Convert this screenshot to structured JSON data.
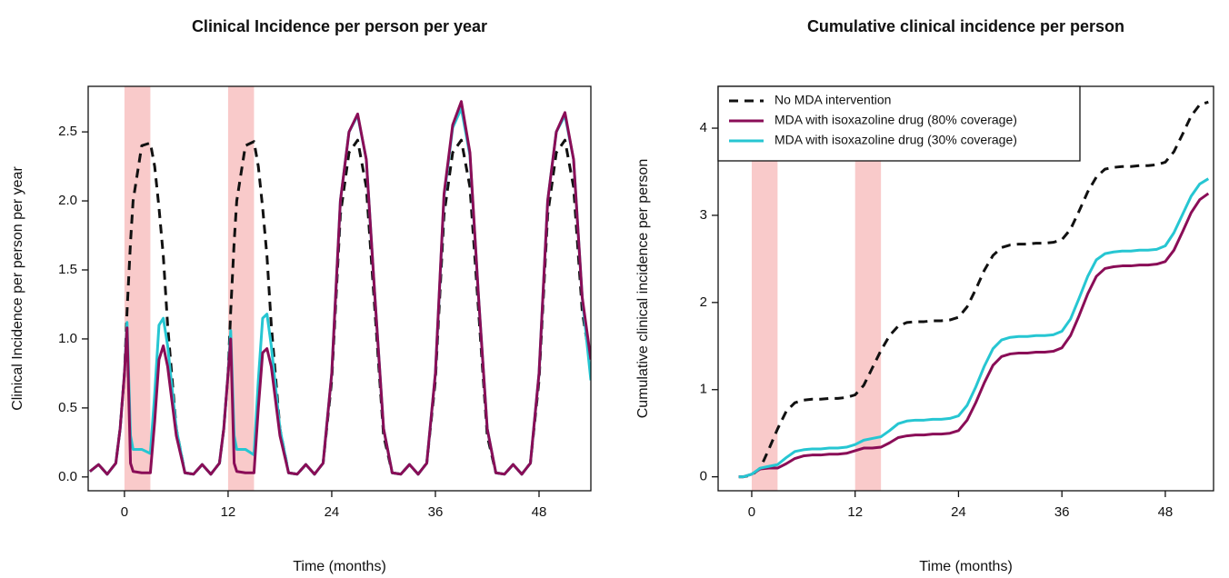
{
  "chart_data": [
    {
      "type": "line",
      "title": "Clinical Incidence per person per year",
      "x_label": "Time (months)",
      "y_label": "Clinical Incidence per person per year",
      "xlim": [
        -4.2,
        54
      ],
      "ylim": [
        -0.1,
        2.83
      ],
      "xticks": [
        0,
        12,
        24,
        36,
        48
      ],
      "yticks": [
        {
          "value": 0,
          "label": "0.0"
        },
        0.5,
        {
          "value": 1,
          "label": "1.0"
        },
        1.5,
        {
          "value": 2,
          "label": "2.0"
        },
        2.5
      ],
      "highlight_ranges": [
        {
          "start": 0,
          "end": 3
        },
        {
          "start": 12,
          "end": 15
        }
      ],
      "highlight_color": "#f9caca",
      "x": [
        -4,
        -3,
        -2,
        -1,
        -0.5,
        0,
        0.3,
        0.7,
        1,
        2,
        3,
        3.5,
        4,
        4.5,
        5,
        6,
        7,
        8,
        9,
        10,
        11,
        11.5,
        12,
        12.3,
        12.7,
        13,
        14,
        15,
        15.5,
        16,
        16.5,
        17,
        18,
        19,
        20,
        21,
        22,
        23,
        24,
        25,
        26,
        27,
        28,
        29,
        30,
        31,
        32,
        33,
        34,
        35,
        36,
        37,
        38,
        39,
        40,
        41,
        42,
        43,
        44,
        45,
        46,
        47,
        48,
        49,
        50,
        51,
        52,
        53,
        54
      ],
      "series": [
        {
          "color": "#111111",
          "linestyle": "dashed",
          "values": [
            0.04,
            0.09,
            0.02,
            0.1,
            0.35,
            0.75,
            1.2,
            1.7,
            2.0,
            2.4,
            2.42,
            2.25,
            1.95,
            1.6,
            1.1,
            0.35,
            0.03,
            0.02,
            0.09,
            0.02,
            0.1,
            0.35,
            0.75,
            1.2,
            1.7,
            2.0,
            2.4,
            2.43,
            2.25,
            1.95,
            1.6,
            1.1,
            0.35,
            0.03,
            0.02,
            0.09,
            0.02,
            0.1,
            0.7,
            1.9,
            2.35,
            2.44,
            2.1,
            1.2,
            0.3,
            0.03,
            0.02,
            0.09,
            0.02,
            0.1,
            0.7,
            1.9,
            2.35,
            2.44,
            2.1,
            1.2,
            0.3,
            0.03,
            0.02,
            0.09,
            0.02,
            0.1,
            0.7,
            1.9,
            2.35,
            2.44,
            2.1,
            1.2,
            0.8
          ]
        },
        {
          "color": "#26c6d2",
          "linestyle": "solid",
          "values": [
            0.04,
            0.09,
            0.02,
            0.1,
            0.35,
            0.75,
            1.12,
            0.3,
            0.2,
            0.2,
            0.17,
            0.6,
            1.1,
            1.15,
            0.95,
            0.35,
            0.03,
            0.02,
            0.09,
            0.02,
            0.1,
            0.35,
            0.75,
            1.06,
            0.3,
            0.2,
            0.2,
            0.16,
            0.7,
            1.15,
            1.18,
            0.95,
            0.35,
            0.03,
            0.02,
            0.09,
            0.02,
            0.1,
            0.75,
            2.0,
            2.5,
            2.62,
            2.3,
            1.3,
            0.35,
            0.03,
            0.02,
            0.09,
            0.02,
            0.1,
            0.75,
            2.03,
            2.53,
            2.67,
            2.33,
            1.3,
            0.35,
            0.03,
            0.02,
            0.09,
            0.02,
            0.1,
            0.75,
            2.0,
            2.5,
            2.62,
            2.3,
            1.3,
            0.7
          ]
        },
        {
          "color": "#8a0d57",
          "linestyle": "solid",
          "values": [
            0.04,
            0.09,
            0.02,
            0.1,
            0.35,
            0.75,
            1.08,
            0.1,
            0.04,
            0.03,
            0.03,
            0.4,
            0.85,
            0.95,
            0.8,
            0.3,
            0.03,
            0.02,
            0.09,
            0.02,
            0.1,
            0.35,
            0.75,
            1.0,
            0.1,
            0.04,
            0.03,
            0.03,
            0.5,
            0.9,
            0.93,
            0.8,
            0.3,
            0.03,
            0.02,
            0.09,
            0.02,
            0.1,
            0.75,
            2.0,
            2.5,
            2.63,
            2.3,
            1.3,
            0.35,
            0.03,
            0.02,
            0.09,
            0.02,
            0.1,
            0.75,
            2.05,
            2.55,
            2.72,
            2.35,
            1.3,
            0.35,
            0.03,
            0.02,
            0.09,
            0.02,
            0.1,
            0.75,
            2.0,
            2.5,
            2.64,
            2.3,
            1.3,
            0.85
          ]
        }
      ]
    },
    {
      "type": "line",
      "title": "Cumulative clinical incidence per person",
      "x_label": "Time (months)",
      "y_label": "Cumulative clinical incidence per person",
      "xlim": [
        -3.9,
        53.6
      ],
      "ylim": [
        -0.16,
        4.48
      ],
      "xticks": [
        0,
        12,
        24,
        36,
        48
      ],
      "yticks": [
        0,
        1,
        2,
        3,
        4
      ],
      "highlight_ranges": [
        {
          "start": 0,
          "end": 3
        },
        {
          "start": 12,
          "end": 15
        }
      ],
      "highlight_color": "#f9caca",
      "legend": "top-left",
      "x": [
        -1.5,
        -1,
        0,
        1,
        2,
        3,
        4,
        5,
        6,
        7,
        8,
        9,
        10,
        11,
        12,
        13,
        14,
        15,
        16,
        17,
        18,
        19,
        20,
        21,
        22,
        23,
        24,
        25,
        26,
        27,
        28,
        29,
        30,
        31,
        32,
        33,
        34,
        35,
        36,
        37,
        38,
        39,
        40,
        41,
        42,
        43,
        44,
        45,
        46,
        47,
        48,
        49,
        50,
        51,
        52,
        53
      ],
      "series": [
        {
          "name": "No MDA intervention",
          "color": "#111111",
          "linestyle": "dashed",
          "values": [
            0,
            0,
            0.02,
            0.1,
            0.32,
            0.55,
            0.75,
            0.85,
            0.88,
            0.89,
            0.89,
            0.9,
            0.9,
            0.91,
            0.94,
            1.05,
            1.25,
            1.45,
            1.62,
            1.73,
            1.77,
            1.78,
            1.78,
            1.79,
            1.79,
            1.8,
            1.83,
            1.95,
            2.15,
            2.37,
            2.54,
            2.63,
            2.66,
            2.67,
            2.67,
            2.68,
            2.68,
            2.69,
            2.72,
            2.84,
            3.05,
            3.27,
            3.44,
            3.53,
            3.55,
            3.56,
            3.56,
            3.57,
            3.57,
            3.58,
            3.61,
            3.73,
            3.93,
            4.14,
            4.27,
            4.3
          ]
        },
        {
          "name": "MDA with isoxazoline drug (80% coverage)",
          "color": "#8a0d57",
          "linestyle": "solid",
          "values": [
            0,
            0,
            0.03,
            0.09,
            0.1,
            0.1,
            0.15,
            0.21,
            0.24,
            0.25,
            0.25,
            0.26,
            0.26,
            0.27,
            0.3,
            0.33,
            0.33,
            0.34,
            0.39,
            0.45,
            0.47,
            0.48,
            0.48,
            0.49,
            0.49,
            0.5,
            0.53,
            0.65,
            0.85,
            1.08,
            1.28,
            1.38,
            1.41,
            1.42,
            1.42,
            1.43,
            1.43,
            1.44,
            1.48,
            1.62,
            1.85,
            2.1,
            2.3,
            2.39,
            2.41,
            2.42,
            2.42,
            2.43,
            2.43,
            2.44,
            2.47,
            2.6,
            2.81,
            3.03,
            3.18,
            3.25
          ]
        },
        {
          "name": "MDA with isoxazoline drug (30% coverage)",
          "color": "#26c6d2",
          "linestyle": "solid",
          "values": [
            0,
            0,
            0.03,
            0.1,
            0.12,
            0.14,
            0.22,
            0.29,
            0.31,
            0.32,
            0.32,
            0.33,
            0.33,
            0.34,
            0.37,
            0.42,
            0.44,
            0.46,
            0.53,
            0.61,
            0.64,
            0.65,
            0.65,
            0.66,
            0.66,
            0.67,
            0.7,
            0.82,
            1.03,
            1.27,
            1.47,
            1.57,
            1.6,
            1.61,
            1.61,
            1.62,
            1.62,
            1.63,
            1.67,
            1.81,
            2.05,
            2.3,
            2.49,
            2.56,
            2.58,
            2.59,
            2.59,
            2.6,
            2.6,
            2.61,
            2.65,
            2.8,
            3.01,
            3.22,
            3.36,
            3.42
          ]
        }
      ]
    }
  ]
}
